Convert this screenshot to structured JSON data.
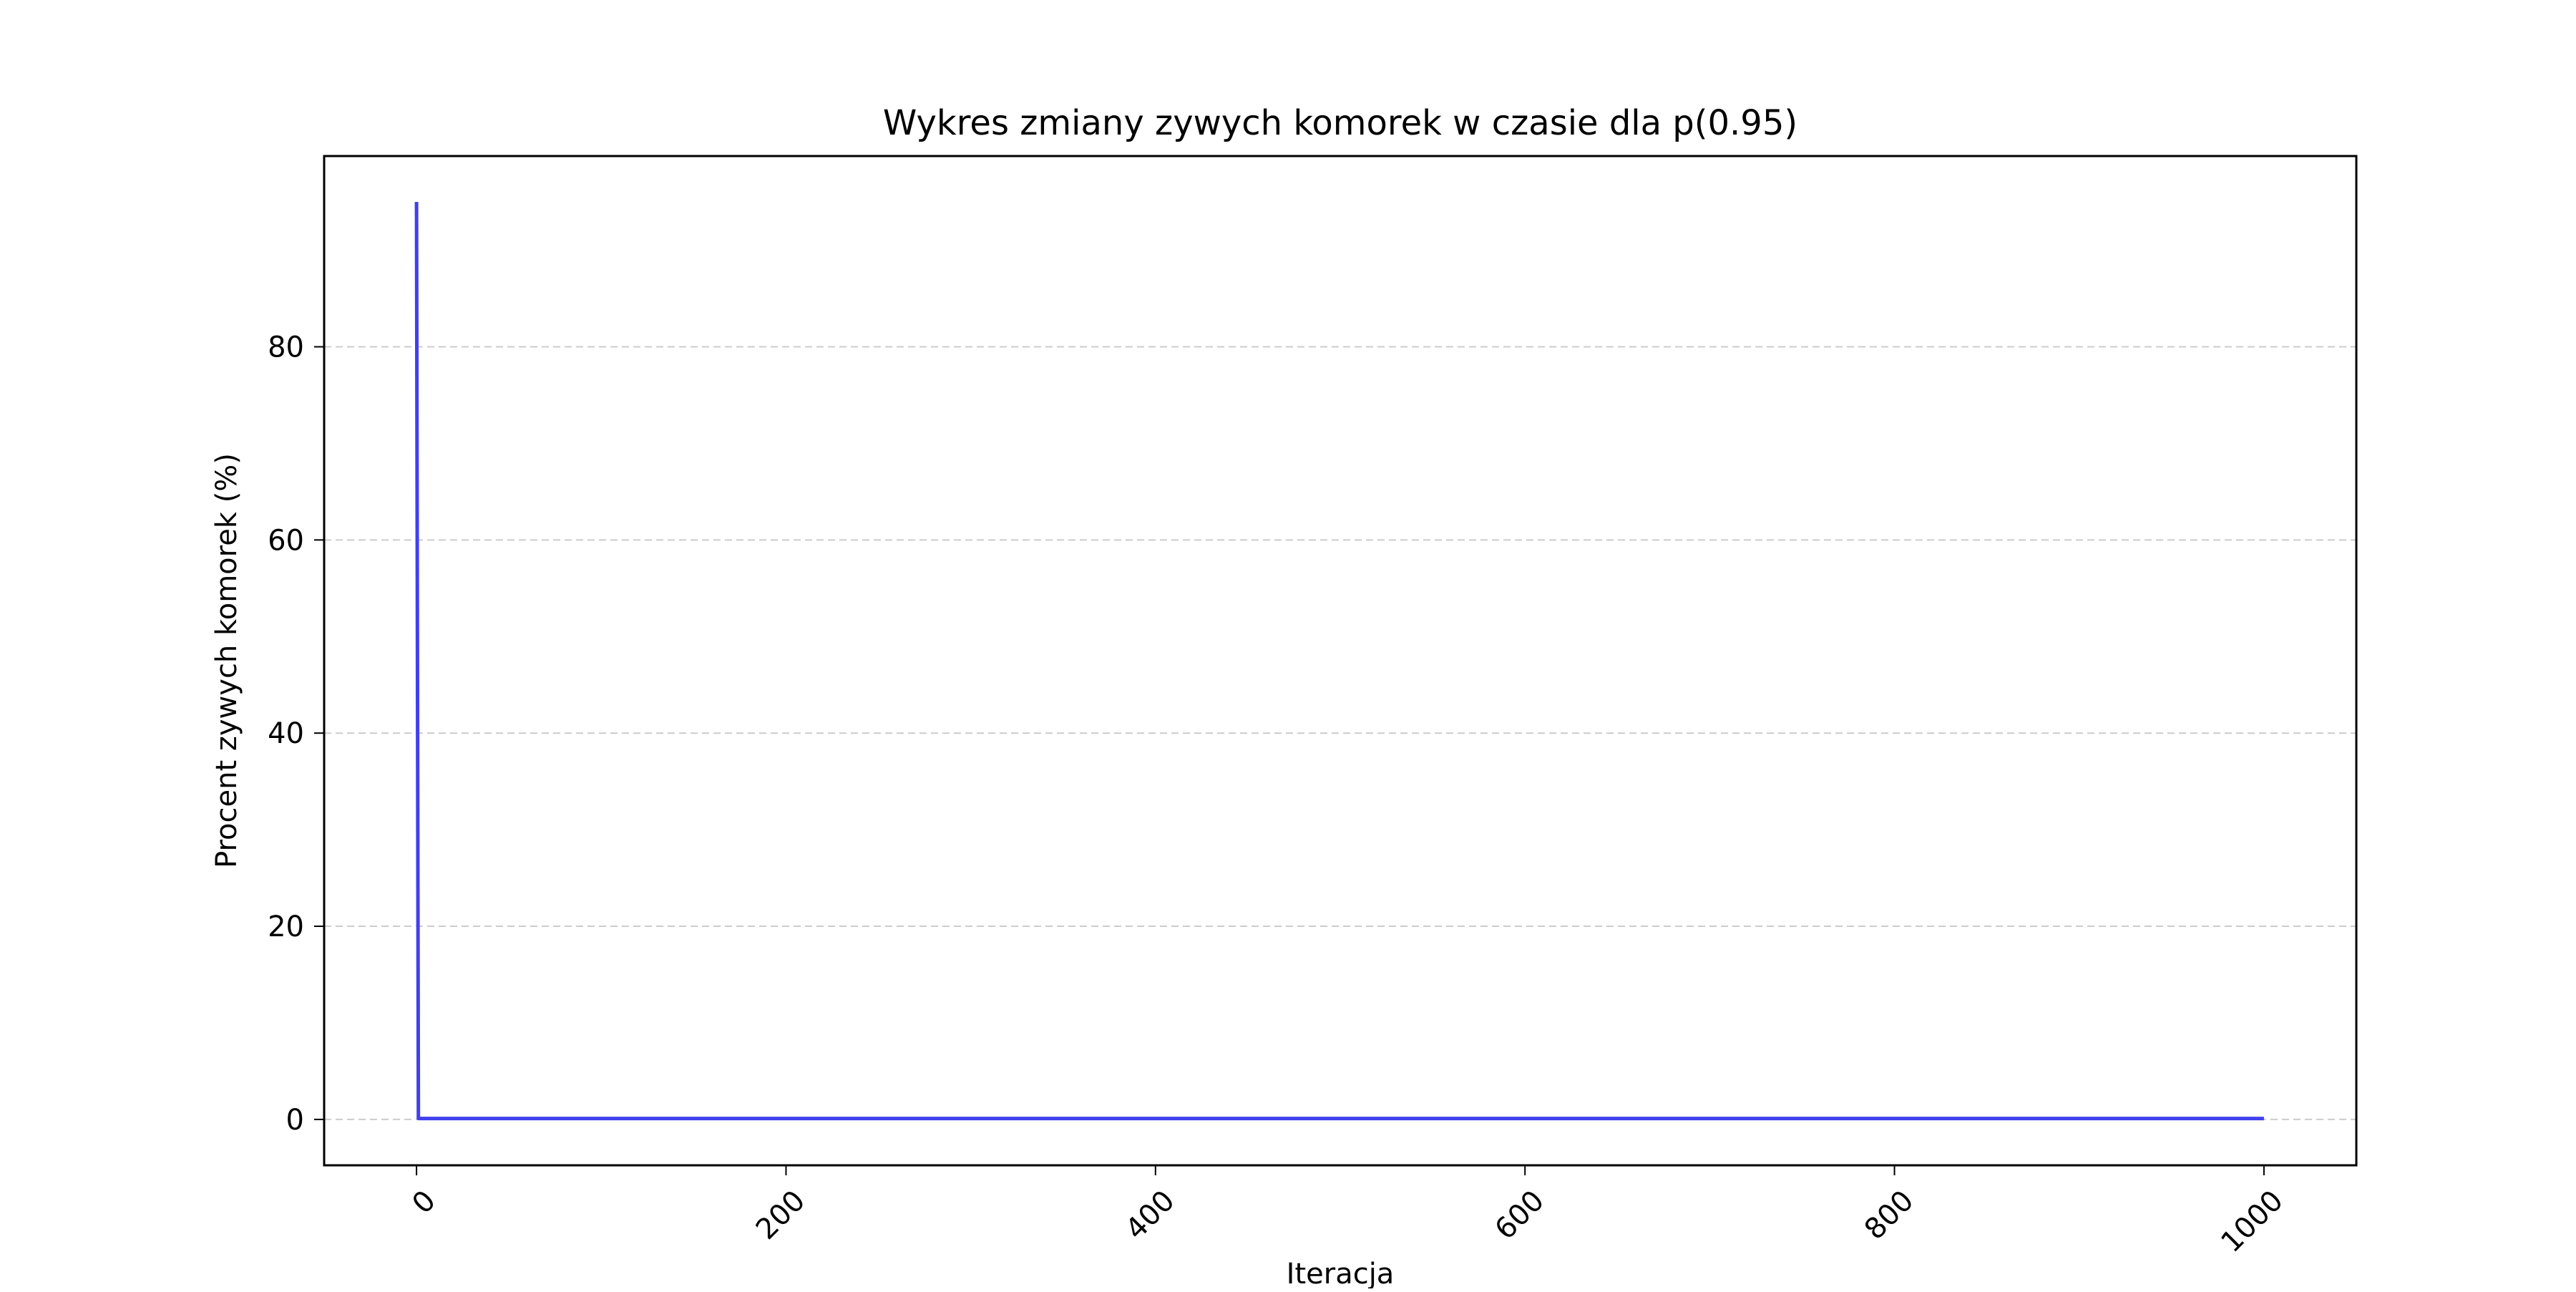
{
  "chart_data": {
    "type": "line",
    "title": "Wykres zmiany zywych komorek w czasie dla p(0.95)",
    "xlabel": "Iteracja",
    "ylabel": "Procent zywych komorek (%)",
    "xlim": [
      -50,
      1050
    ],
    "ylim": [
      -4.75,
      99.75
    ],
    "xticks": [
      0,
      200,
      400,
      600,
      800,
      1000
    ],
    "xtick_labels": [
      "0",
      "200",
      "400",
      "600",
      "800",
      "1000"
    ],
    "xtick_rotation": 45,
    "yticks": [
      0,
      20,
      40,
      60,
      80
    ],
    "ytick_labels": [
      "0",
      "20",
      "40",
      "60",
      "80"
    ],
    "grid": {
      "axis": "y",
      "style": "dashed",
      "color": "#cccccc"
    },
    "legend": false,
    "series": [
      {
        "color": "#4040ee",
        "x": [
          0,
          1,
          2,
          10,
          100,
          500,
          1000
        ],
        "y": [
          95,
          0.1,
          0.1,
          0.1,
          0.1,
          0.1,
          0.1
        ]
      }
    ]
  }
}
